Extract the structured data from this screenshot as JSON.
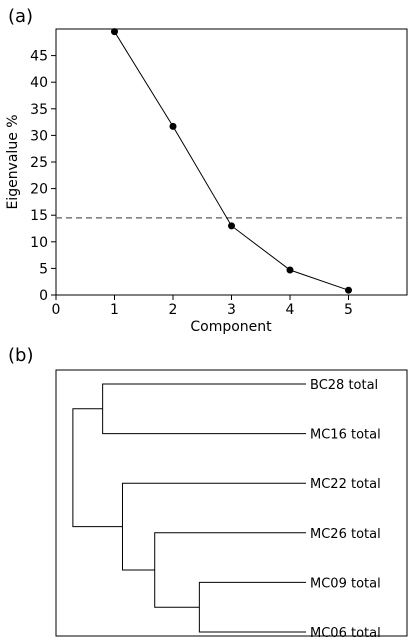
{
  "chart_data": [
    {
      "type": "line",
      "panel_label": "(a)",
      "xlabel": "Component",
      "ylabel": "Eigenvalue %",
      "xlim": [
        0,
        6
      ],
      "ylim": [
        0,
        50
      ],
      "x_ticks": [
        0,
        1,
        2,
        3,
        4,
        5
      ],
      "y_ticks": [
        0,
        5,
        10,
        15,
        20,
        25,
        30,
        35,
        40,
        45
      ],
      "grid": false,
      "series": [
        {
          "x": [
            1,
            2,
            3,
            4,
            5
          ],
          "values": [
            49.5,
            31.7,
            13.0,
            4.7,
            0.9
          ]
        }
      ],
      "reference_line": {
        "y": 14.5,
        "style": "dashed",
        "color": "#777777"
      }
    },
    {
      "type": "dendrogram",
      "panel_label": "(b)",
      "leaves": [
        "BC28 total",
        "MC16 total",
        "MC22 total",
        "MC26 total",
        "MC09 total",
        "MC06 total"
      ],
      "merges": [
        {
          "left": "BC28 total",
          "right": "MC16 total",
          "height": 0.82
        },
        {
          "left": "MC09 total",
          "right": "MC06 total",
          "height": 0.43
        },
        {
          "left": "MC26 total",
          "right": "MC09+MC06",
          "height": 0.61
        },
        {
          "left": "MC22 total",
          "right": "MC26+MC09+MC06",
          "height": 0.74
        },
        {
          "left": "BC28+MC16",
          "right": "MC22+MC26+MC09+MC06",
          "height": 0.94
        }
      ]
    }
  ]
}
